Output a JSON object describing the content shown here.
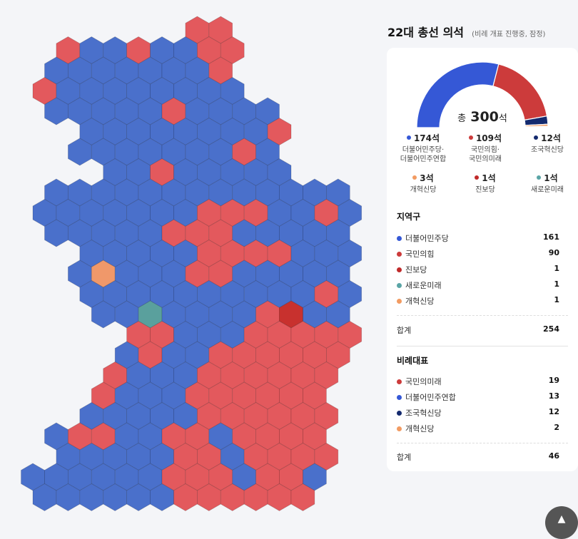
{
  "header": {
    "title": "22대 총선 의석",
    "subtitle": "(비례 개표 진행중, 잠정)"
  },
  "colors": {
    "democratic": "#3558d6",
    "ppp": "#cc3b3b",
    "rebuild": "#142a6e",
    "reform": "#f29b62",
    "progressive": "#c02a2a",
    "newfuture": "#5aa5a6",
    "map_blue": "#4a70cb",
    "map_red": "#e3595d",
    "map_orange": "#f0986a",
    "map_teal": "#5aa09d",
    "map_darkred": "#c8312e"
  },
  "chart_data": {
    "type": "pie",
    "style": "semi-donut",
    "total_label": "총",
    "total_value": "300",
    "total_unit": "석",
    "slices": [
      {
        "label": "더불어민주당·더불어민주연합",
        "value": 174,
        "color": "#3558d6"
      },
      {
        "label": "국민의힘·국민의미래",
        "value": 109,
        "color": "#cc3b3b"
      },
      {
        "label": "조국혁신당",
        "value": 12,
        "color": "#142a6e"
      },
      {
        "label": "개혁신당",
        "value": 3,
        "color": "#f29b62"
      },
      {
        "label": "진보당",
        "value": 1,
        "color": "#c02a2a"
      },
      {
        "label": "새로운미래",
        "value": 1,
        "color": "#5aa5a6"
      }
    ]
  },
  "legend": [
    {
      "value": "174석",
      "name1": "더불어민주당·",
      "name2": "더불어민주연합",
      "color": "#3558d6"
    },
    {
      "value": "109석",
      "name1": "국민의힘·",
      "name2": "국민의미래",
      "color": "#cc3b3b"
    },
    {
      "value": "12석",
      "name1": "조국혁신당",
      "name2": "",
      "color": "#142a6e"
    },
    {
      "value": "3석",
      "name1": "개혁신당",
      "name2": "",
      "color": "#f29b62"
    },
    {
      "value": "1석",
      "name1": "진보당",
      "name2": "",
      "color": "#c02a2a"
    },
    {
      "value": "1석",
      "name1": "새로운미래",
      "name2": "",
      "color": "#5aa5a6"
    }
  ],
  "district": {
    "title": "지역구",
    "rows": [
      {
        "name": "더불어민주당",
        "value": "161",
        "color": "#3558d6"
      },
      {
        "name": "국민의힘",
        "value": "90",
        "color": "#cc3b3b"
      },
      {
        "name": "진보당",
        "value": "1",
        "color": "#c02a2a"
      },
      {
        "name": "새로운미래",
        "value": "1",
        "color": "#5aa5a6"
      },
      {
        "name": "개혁신당",
        "value": "1",
        "color": "#f29b62"
      }
    ],
    "total_label": "합계",
    "total_value": "254"
  },
  "proportional": {
    "title": "비례대표",
    "rows": [
      {
        "name": "국민의미래",
        "value": "19",
        "color": "#cc3b3b"
      },
      {
        "name": "더불어민주연합",
        "value": "13",
        "color": "#3558d6"
      },
      {
        "name": "조국혁신당",
        "value": "12",
        "color": "#142a6e"
      },
      {
        "name": "개혁신당",
        "value": "2",
        "color": "#f29b62"
      }
    ],
    "total_label": "합계",
    "total_value": "46"
  },
  "map": {
    "note": "hexagon cartogram of 254 districts",
    "red_hexes": [
      [
        7,
        0
      ],
      [
        8,
        0
      ],
      [
        1,
        1
      ],
      [
        4,
        1
      ],
      [
        7,
        1
      ],
      [
        8,
        1
      ],
      [
        8,
        2
      ],
      [
        0,
        3
      ],
      [
        6,
        4
      ],
      [
        10,
        5
      ],
      [
        9,
        6
      ],
      [
        5,
        7
      ],
      [
        7,
        9
      ],
      [
        8,
        9
      ],
      [
        9,
        9
      ],
      [
        12,
        9
      ],
      [
        6,
        10
      ],
      [
        7,
        10
      ],
      [
        8,
        10
      ],
      [
        7,
        11
      ],
      [
        8,
        11
      ],
      [
        9,
        11
      ],
      [
        10,
        11
      ],
      [
        7,
        12
      ],
      [
        8,
        12
      ],
      [
        12,
        13
      ],
      [
        10,
        14
      ],
      [
        11,
        14
      ],
      [
        4,
        15
      ],
      [
        5,
        15
      ],
      [
        9,
        15
      ],
      [
        10,
        15
      ],
      [
        11,
        15
      ],
      [
        12,
        15
      ],
      [
        13,
        15
      ],
      [
        5,
        16
      ],
      [
        8,
        16
      ],
      [
        9,
        16
      ],
      [
        10,
        16
      ],
      [
        11,
        16
      ],
      [
        12,
        16
      ],
      [
        13,
        16
      ],
      [
        3,
        17
      ],
      [
        7,
        17
      ],
      [
        8,
        17
      ],
      [
        9,
        17
      ],
      [
        10,
        17
      ],
      [
        11,
        17
      ],
      [
        12,
        17
      ],
      [
        3,
        18
      ],
      [
        7,
        18
      ],
      [
        8,
        18
      ],
      [
        9,
        18
      ],
      [
        10,
        18
      ],
      [
        11,
        18
      ],
      [
        12,
        18
      ],
      [
        7,
        19
      ],
      [
        8,
        19
      ],
      [
        9,
        19
      ],
      [
        10,
        19
      ],
      [
        11,
        19
      ],
      [
        12,
        19
      ],
      [
        2,
        20
      ],
      [
        3,
        20
      ],
      [
        6,
        20
      ],
      [
        7,
        20
      ],
      [
        9,
        20
      ],
      [
        10,
        20
      ],
      [
        11,
        20
      ],
      [
        12,
        20
      ],
      [
        6,
        21
      ],
      [
        7,
        21
      ],
      [
        9,
        21
      ],
      [
        10,
        21
      ],
      [
        11,
        21
      ],
      [
        12,
        21
      ],
      [
        6,
        22
      ],
      [
        7,
        22
      ],
      [
        8,
        22
      ],
      [
        10,
        22
      ],
      [
        11,
        22
      ],
      [
        6,
        23
      ],
      [
        7,
        23
      ],
      [
        8,
        23
      ],
      [
        9,
        23
      ],
      [
        10,
        23
      ],
      [
        11,
        23
      ],
      [
        8,
        24
      ],
      [
        9,
        24
      ],
      [
        10,
        24
      ],
      [
        11,
        24
      ],
      [
        6,
        25
      ],
      [
        7,
        25
      ],
      [
        8,
        25
      ],
      [
        9,
        25
      ],
      [
        10,
        25
      ],
      [
        6,
        26
      ],
      [
        7,
        26
      ],
      [
        8,
        26
      ],
      [
        9,
        26
      ]
    ],
    "orange_hexes": [
      [
        3,
        12
      ]
    ],
    "teal_hexes": [
      [
        5,
        14
      ]
    ],
    "darkred_hexes": [
      [
        11,
        14
      ]
    ]
  },
  "scroll_icon": "arrow-up-icon",
  "scroll_glyph": "▲"
}
